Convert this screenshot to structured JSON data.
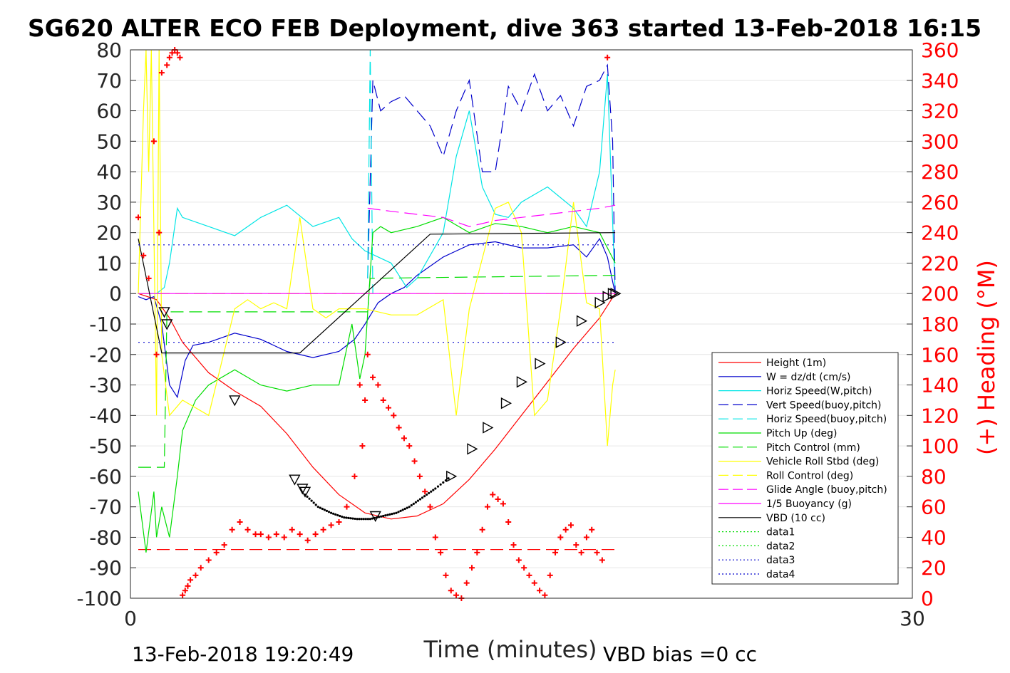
{
  "chart_data": {
    "type": "line",
    "title": "SG620 ALTER ECO FEB Deployment, dive 363 started 13-Feb-2018 16:15",
    "xlabel": "Time (minutes)",
    "ylabel": "",
    "y2label": "(+) Heading (°M)",
    "xlim": [
      0,
      30
    ],
    "ylim": [
      -100,
      80
    ],
    "y2lim": [
      0,
      360
    ],
    "xticks": [
      "0",
      "30"
    ],
    "yticks": [
      "80",
      "70",
      "60",
      "50",
      "40",
      "30",
      "20",
      "10",
      "0",
      "-10",
      "-20",
      "-30",
      "-40",
      "-50",
      "-60",
      "-70",
      "-80",
      "-90",
      "-100"
    ],
    "y2ticks": [
      "360",
      "340",
      "320",
      "300",
      "280",
      "260",
      "240",
      "220",
      "200",
      "180",
      "160",
      "140",
      "120",
      "100",
      "80",
      "60",
      "40",
      "20",
      "0"
    ],
    "grid": true,
    "legend_position": "right",
    "footer_left": "13-Feb-2018 19:20:49",
    "footer_right": "VBD bias =0 cc",
    "series": [
      {
        "name": "Height (1m)",
        "color": "#ff0000",
        "dash": "",
        "marker": "",
        "x": [
          0.3,
          1.0,
          1.5,
          2.0,
          3.0,
          4.0,
          5.0,
          6.0,
          7.0,
          8.0,
          9.0,
          10.0,
          11.0,
          12.0,
          13.0,
          14.0,
          15.0,
          16.0,
          17.0,
          18.0,
          18.6
        ],
        "y": [
          0,
          -2,
          -8,
          -16,
          -26,
          -32,
          -37,
          -46,
          -57,
          -66,
          -72,
          -74,
          -73,
          -69,
          -61,
          -51,
          -40,
          -29,
          -18,
          -8,
          0
        ]
      },
      {
        "name": "W = dz/dt (cm/s)",
        "color": "#0000cc",
        "dash": "",
        "marker": "",
        "x": [
          0.3,
          0.6,
          0.9,
          1.2,
          1.5,
          1.8,
          2.1,
          2.4,
          3.0,
          4.0,
          5.0,
          6.0,
          7.0,
          8.0,
          8.6,
          9.0,
          9.5,
          10.0,
          10.5,
          11.0,
          12.0,
          13.0,
          14.0,
          15.0,
          16.0,
          17.0,
          17.5,
          18.0,
          18.3,
          18.6
        ],
        "y": [
          -1,
          -2,
          -1,
          -10,
          -30,
          -34,
          -22,
          -17,
          -16,
          -13,
          -15,
          -19,
          -21,
          -19,
          -15,
          -10,
          -3,
          0,
          2,
          6,
          12,
          16,
          17,
          15,
          15,
          16,
          12,
          18,
          12,
          0
        ]
      },
      {
        "name": "Horiz Speed(W,pitch)",
        "color": "#00e5e5",
        "dash": "",
        "marker": "",
        "x": [
          0.3,
          1.0,
          1.3,
          1.5,
          1.8,
          2.0,
          3.0,
          4.0,
          5.0,
          6.0,
          7.0,
          8.0,
          8.5,
          9.0,
          10.0,
          10.6,
          11.0,
          12.0,
          12.5,
          13.0,
          13.5,
          14.0,
          14.5,
          15.0,
          16.0,
          17.0,
          17.5,
          18.0,
          18.3,
          18.6
        ],
        "y": [
          0,
          0,
          2,
          10,
          28,
          25,
          22,
          19,
          25,
          29,
          22,
          25,
          18,
          14,
          10,
          2,
          5,
          20,
          45,
          60,
          35,
          26,
          25,
          30,
          35,
          28,
          22,
          40,
          72,
          0
        ]
      },
      {
        "name": "Vert Speed(buoy,pitch)",
        "color": "#0000cc",
        "dash": "18,8",
        "marker": "",
        "x": [
          9.1,
          9.3,
          9.6,
          10.0,
          10.5,
          11.0,
          11.5,
          12.0,
          12.5,
          13.0,
          13.5,
          14.0,
          14.5,
          15.0,
          15.5,
          16.0,
          16.5,
          17.0,
          17.5,
          18.0,
          18.3,
          18.5,
          18.6
        ],
        "y": [
          5,
          70,
          60,
          63,
          65,
          60,
          55,
          45,
          60,
          70,
          40,
          40,
          68,
          60,
          72,
          60,
          65,
          55,
          68,
          70,
          75,
          50,
          0
        ]
      },
      {
        "name": "Horiz Speed(buoy,pitch)",
        "color": "#00e5e5",
        "dash": "18,8",
        "marker": "",
        "x": [
          9.1,
          9.2,
          9.3
        ],
        "y": [
          5,
          80,
          0
        ]
      },
      {
        "name": "Pitch Up (deg)",
        "color": "#00dd00",
        "dash": "",
        "marker": "",
        "x": [
          0.3,
          0.6,
          0.9,
          1.0,
          1.2,
          1.5,
          1.8,
          2.0,
          2.5,
          3.0,
          4.0,
          5.0,
          6.0,
          7.0,
          8.0,
          8.5,
          8.8,
          9.0,
          9.3,
          9.6,
          10.0,
          11.0,
          12.0,
          13.0,
          14.0,
          15.0,
          16.0,
          17.0,
          18.0,
          18.6
        ],
        "y": [
          -65,
          -85,
          -65,
          -80,
          -70,
          -80,
          -60,
          -45,
          -35,
          -30,
          -25,
          -30,
          -32,
          -30,
          -30,
          -10,
          -28,
          -20,
          20,
          22,
          20,
          22,
          25,
          20,
          23,
          22,
          20,
          22,
          20,
          10
        ]
      },
      {
        "name": "Pitch Control (mm)",
        "color": "#00dd00",
        "dash": "18,8",
        "marker": "",
        "x": [
          0.3,
          1.0,
          1.3,
          1.4,
          1.5,
          9.1,
          9.2,
          18.6
        ],
        "y": [
          -57,
          -57,
          -57,
          -6,
          -6,
          -6,
          5,
          6
        ]
      },
      {
        "name": "Vehicle Roll Stbd (deg)",
        "color": "#ffff00",
        "dash": "",
        "marker": "",
        "x": [
          0.3,
          0.5,
          0.6,
          0.7,
          0.8,
          1.0,
          1.1,
          1.2,
          1.5,
          2.0,
          3.0,
          4.0,
          4.5,
          5.0,
          5.5,
          6.0,
          6.5,
          7.0,
          7.5,
          8.0,
          9.0,
          10.0,
          11.0,
          12.0,
          12.5,
          13.0,
          14.0,
          14.5,
          15.0,
          15.5,
          16.0,
          16.5,
          17.0,
          17.5,
          18.0,
          18.3,
          18.5,
          18.6
        ],
        "y": [
          0,
          60,
          80,
          40,
          80,
          -40,
          80,
          -20,
          -40,
          -35,
          -40,
          -5,
          -2,
          -5,
          -3,
          -5,
          25,
          -5,
          -8,
          -5,
          -5,
          -7,
          -7,
          -2,
          -40,
          -5,
          28,
          30,
          20,
          -40,
          -35,
          -5,
          30,
          -3,
          -5,
          -50,
          -30,
          -25
        ]
      },
      {
        "name": "Roll Control (deg)",
        "color": "#ffff00",
        "dash": "18,8",
        "marker": "",
        "x": [
          0.3,
          18.6
        ],
        "y": [
          0,
          0
        ]
      },
      {
        "name": "Glide Angle (buoy,pitch)",
        "color": "#ff00ff",
        "dash": "18,8",
        "marker": "",
        "x": [
          9.1,
          10.0,
          11.0,
          12.0,
          13.0,
          14.0,
          15.0,
          16.0,
          17.0,
          18.0,
          18.6
        ],
        "y": [
          28,
          27,
          26,
          25,
          22,
          24,
          25,
          26,
          27,
          28,
          29
        ]
      },
      {
        "name": "1/5 Buoyancy (g)",
        "color": "#ff00ff",
        "dash": "",
        "marker": "",
        "x": [
          0.3,
          18.6
        ],
        "y": [
          0,
          0
        ]
      },
      {
        "name": "VBD (10 cc)",
        "color": "#000000",
        "dash": "",
        "marker": "",
        "x": [
          0.3,
          1.2,
          6.5,
          9.0,
          11.5,
          18.6
        ],
        "y": [
          18,
          -19.5,
          -19.5,
          0,
          19.5,
          20
        ]
      },
      {
        "name": "data1",
        "color": "#00dd00",
        "dash": "2,5",
        "marker": "",
        "x": [],
        "y": []
      },
      {
        "name": "data2",
        "color": "#00dd00",
        "dash": "2,5",
        "marker": "",
        "x": [],
        "y": []
      },
      {
        "name": "data3",
        "color": "#0000cc",
        "dash": "2,5",
        "marker": "",
        "x": [
          0.3,
          18.6
        ],
        "y": [
          16,
          16
        ]
      },
      {
        "name": "data4",
        "color": "#0000cc",
        "dash": "2,5",
        "marker": "",
        "x": [
          0.3,
          18.6
        ],
        "y": [
          -16,
          -16
        ]
      }
    ],
    "extra_lines": [
      {
        "color": "#8800ff",
        "dash": "18,8",
        "x": [
          0.3,
          9.1
        ],
        "y": [
          0,
          0
        ]
      },
      {
        "color": "#ff0000",
        "dash": "18,8",
        "x": [
          0.3,
          18.6
        ],
        "y": [
          -84,
          -84
        ]
      }
    ],
    "heading_points": {
      "color": "#ff0000",
      "x": [
        0.3,
        0.5,
        0.7,
        0.9,
        1.0,
        1.1,
        1.2,
        1.4,
        1.5,
        1.6,
        1.7,
        1.8,
        1.9,
        2.0,
        2.1,
        2.2,
        2.3,
        2.5,
        2.7,
        3.0,
        3.3,
        3.6,
        3.9,
        4.2,
        4.5,
        4.8,
        5.0,
        5.3,
        5.6,
        5.9,
        6.2,
        6.5,
        6.8,
        7.1,
        7.4,
        7.7,
        8.0,
        8.3,
        8.6,
        8.8,
        8.9,
        9.0,
        9.1,
        9.3,
        9.5,
        9.7,
        9.9,
        10.1,
        10.3,
        10.5,
        10.7,
        10.9,
        11.1,
        11.3,
        11.5,
        11.7,
        11.9,
        12.1,
        12.3,
        12.5,
        12.7,
        12.9,
        13.1,
        13.3,
        13.5,
        13.7,
        13.9,
        14.1,
        14.3,
        14.5,
        14.7,
        14.9,
        15.1,
        15.3,
        15.5,
        15.7,
        15.9,
        16.1,
        16.3,
        16.5,
        16.7,
        16.9,
        17.1,
        17.3,
        17.5,
        17.7,
        17.9,
        18.1,
        18.3
      ],
      "y": [
        250,
        225,
        210,
        300,
        160,
        240,
        345,
        350,
        355,
        358,
        360,
        358,
        355,
        2,
        5,
        8,
        12,
        15,
        20,
        25,
        30,
        35,
        45,
        50,
        45,
        42,
        42,
        40,
        42,
        40,
        45,
        42,
        38,
        42,
        45,
        48,
        50,
        60,
        80,
        140,
        100,
        130,
        160,
        145,
        140,
        130,
        125,
        120,
        112,
        105,
        100,
        90,
        80,
        70,
        60,
        40,
        30,
        15,
        5,
        2,
        0,
        10,
        20,
        30,
        45,
        60,
        68,
        65,
        62,
        50,
        35,
        25,
        20,
        15,
        10,
        5,
        2,
        15,
        30,
        40,
        45,
        48,
        35,
        30,
        40,
        45,
        30,
        25,
        355
      ]
    },
    "triangle_markers": {
      "x": [
        1.3,
        1.4,
        4.0,
        6.3,
        6.6,
        6.7,
        9.4,
        12.3,
        13.1,
        13.7,
        14.4,
        15.0,
        15.7,
        16.5,
        17.3,
        18.0,
        18.3,
        18.5,
        18.6
      ],
      "y": [
        -6,
        -10,
        -35,
        -61,
        -64,
        -65,
        -73,
        -60,
        -51,
        -44,
        -36,
        -29,
        -23,
        -16,
        -9,
        -3,
        -1,
        0,
        0
      ]
    }
  }
}
